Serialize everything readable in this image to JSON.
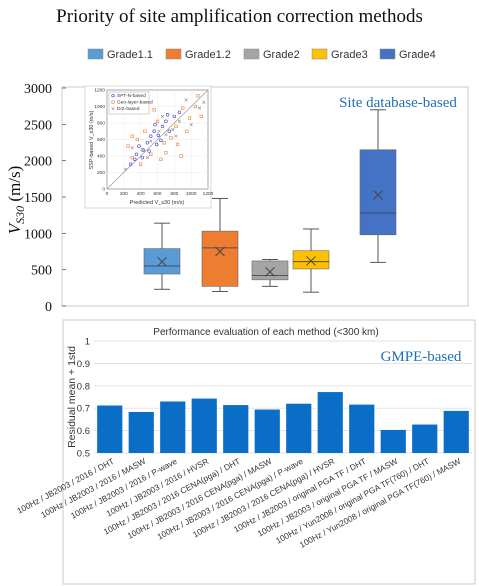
{
  "page_title": "Priority of site amplification correction methods",
  "colors": {
    "grade1_1": "#5b9bd5",
    "grade1_2": "#ed7d31",
    "grade2": "#a5a5a5",
    "grade3": "#ffc000",
    "grade4": "#4472c4",
    "bar": "#0b6ec6",
    "annotation": "#1f6fb5"
  },
  "chart_data": [
    {
      "type": "box",
      "title": "",
      "ylabel": "V_S30 (m/s)",
      "ylabel_main": "V",
      "ylabel_sub": "S30",
      "ylabel_unit": " (m/s)",
      "ylim": [
        0,
        3000
      ],
      "yticks": [
        "0",
        "500",
        "1000",
        "1500",
        "2000",
        "2500",
        "3000"
      ],
      "annotation": "Site database-based",
      "legend": [
        "Grade1.1",
        "Grade1.2",
        "Grade2",
        "Grade3",
        "Grade4"
      ],
      "legend_placement": "top",
      "series": [
        {
          "name": "Grade1.1",
          "min": 230,
          "q1": 440,
          "median": 550,
          "q3": 790,
          "max": 1140,
          "mean": 610
        },
        {
          "name": "Grade1.2",
          "min": 200,
          "q1": 270,
          "median": 800,
          "q3": 1030,
          "max": 1480,
          "mean": 750
        },
        {
          "name": "Grade2",
          "min": 270,
          "q1": 360,
          "median": 420,
          "q3": 620,
          "max": 640,
          "mean": 470
        },
        {
          "name": "Grade3",
          "min": 190,
          "q1": 510,
          "median": 610,
          "q3": 760,
          "max": 1060,
          "mean": 620
        },
        {
          "name": "Grade4",
          "min": 600,
          "q1": 980,
          "median": 1280,
          "q3": 2150,
          "max": 2700,
          "mean": 1530
        }
      ]
    },
    {
      "type": "scatter",
      "title": "",
      "xlabel": "Predicted V_s30 (m/s)",
      "ylabel": "SSP-based V_s30 (m/s)",
      "xlim": [
        0,
        1200
      ],
      "ylim": [
        0,
        1200
      ],
      "xticks": [
        "0",
        "200",
        "400",
        "600",
        "800",
        "1000",
        "1200"
      ],
      "yticks": [
        "0",
        "200",
        "400",
        "600",
        "800",
        "1000",
        "1200"
      ],
      "legend": [
        "SPT-N-based",
        "Geo-layer-based",
        "D/Z-based"
      ],
      "legend_placement": "top-left",
      "diagonal": true,
      "series": [
        {
          "name": "SPT-N-based",
          "color": "#3b3bd9",
          "points": [
            [
              280,
              300
            ],
            [
              350,
              420
            ],
            [
              420,
              380
            ],
            [
              480,
              560
            ],
            [
              520,
              640
            ],
            [
              560,
              700
            ],
            [
              610,
              650
            ],
            [
              660,
              760
            ],
            [
              700,
              820
            ],
            [
              740,
              700
            ],
            [
              800,
              880
            ],
            [
              860,
              930
            ],
            [
              430,
              470
            ],
            [
              590,
              540
            ],
            [
              380,
              520
            ],
            [
              640,
              590
            ],
            [
              500,
              460
            ],
            [
              720,
              900
            ],
            [
              330,
              360
            ],
            [
              570,
              780
            ]
          ]
        },
        {
          "name": "Geo-layer-based",
          "color": "#ed7d31",
          "points": [
            [
              250,
              520
            ],
            [
              300,
              380
            ],
            [
              360,
              600
            ],
            [
              450,
              700
            ],
            [
              520,
              420
            ],
            [
              600,
              820
            ],
            [
              680,
              560
            ],
            [
              760,
              620
            ],
            [
              820,
              760
            ],
            [
              900,
              980
            ],
            [
              980,
              860
            ],
            [
              1050,
              1000
            ],
            [
              1120,
              880
            ],
            [
              400,
              300
            ],
            [
              560,
              960
            ],
            [
              700,
              440
            ],
            [
              840,
              540
            ],
            [
              950,
              700
            ],
            [
              1080,
              1130
            ],
            [
              300,
              640
            ],
            [
              640,
              360
            ],
            [
              880,
              400
            ]
          ]
        },
        {
          "name": "D/Z-based",
          "color": "#8a8a8a",
          "points": [
            [
              220,
              240
            ],
            [
              300,
              500
            ],
            [
              420,
              480
            ],
            [
              520,
              580
            ],
            [
              620,
              700
            ],
            [
              700,
              660
            ],
            [
              780,
              720
            ],
            [
              860,
              820
            ],
            [
              940,
              1080
            ],
            [
              1000,
              780
            ],
            [
              1100,
              980
            ],
            [
              480,
              380
            ],
            [
              660,
              880
            ],
            [
              820,
              640
            ],
            [
              1150,
              1050
            ]
          ]
        }
      ]
    },
    {
      "type": "bar",
      "title": "Performance evaluation of each method (<300 km)",
      "xlabel": "",
      "ylabel": "Residual mean + 1std",
      "ylim": [
        0.5,
        1.0
      ],
      "yticks": [
        "0.5",
        "0.6",
        "0.7",
        "0.8",
        "0.9",
        "1"
      ],
      "annotation": "GMPE-based",
      "categories": [
        "100Hz / JB2003 / 2016 / DHT",
        "100Hz / JB2003 / 2016 / MASW",
        "100Hz / JB2003 / 2016 / P-wave",
        "100Hz / JB2003 / 2016 / HVSR",
        "100Hz / JB2003 / 2016 CENA(pga) / DHT",
        "100Hz / JB2003 / 2016 CENA(pga) / MASW",
        "100Hz / JB2003 / 2016 CENA(pga) / P-wave",
        "100Hz / JB2003 / 2016 CENA(pga) / HVSR",
        "100Hz / JB2003 / original PGA TF / DHT",
        "100Hz / JB2003 / original PGA TF / MASW",
        "100Hz / Yun2008 / original PGA TF(760) / DHT",
        "100Hz / Yun2008 / original PGA TF(760) / MASW"
      ],
      "values": [
        0.712,
        0.683,
        0.73,
        0.743,
        0.714,
        0.694,
        0.72,
        0.772,
        0.716,
        0.603,
        0.627,
        0.688
      ]
    }
  ]
}
